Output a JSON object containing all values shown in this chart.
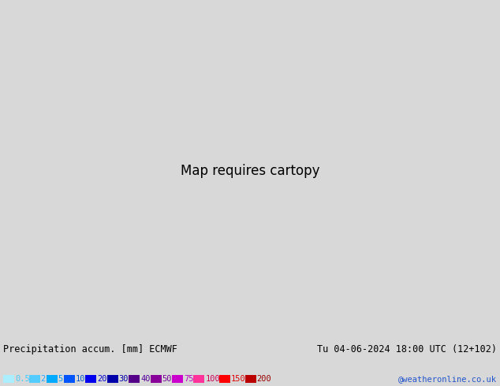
{
  "title_left": "Precipitation accum. [mm] ECMWF",
  "title_right": "Tu 04-06-2024 18:00 UTC (12+102)",
  "credit": "@weatheronline.co.uk",
  "legend_values": [
    "0.5",
    "2",
    "5",
    "10",
    "20",
    "30",
    "40",
    "50",
    "75",
    "100",
    "150",
    "200"
  ],
  "legend_colors": [
    "#aaeeff",
    "#55ccff",
    "#00aaff",
    "#0055ff",
    "#0000ee",
    "#0000aa",
    "#550088",
    "#880099",
    "#cc00cc",
    "#ff3399",
    "#ff0000",
    "#bb0000"
  ],
  "legend_text_colors": [
    "#44ccff",
    "#22aaff",
    "#0099ff",
    "#0055cc",
    "#0000cc",
    "#0000aa",
    "#550099",
    "#770099",
    "#bb00bb",
    "#cc0055",
    "#dd0000",
    "#990000"
  ],
  "bg_color": "#d8d8d8",
  "bottom_bar_color": "#d8d8d8",
  "title_fontsize": 8.5,
  "credit_fontsize": 7.5,
  "fig_width": 6.34,
  "fig_height": 4.9,
  "dpi": 100,
  "map_extent": [
    10.0,
    42.0,
    32.0,
    50.0
  ],
  "sea_color": "#aed4f0",
  "land_color": "#d4e8a0",
  "coast_color": "#888888",
  "coast_lw": 0.4
}
